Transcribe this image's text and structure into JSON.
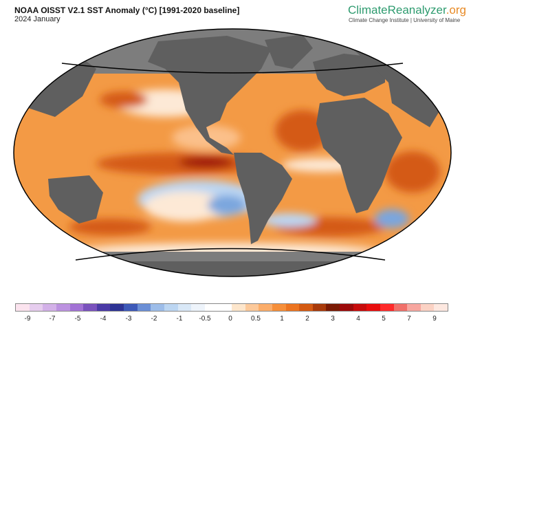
{
  "header": {
    "title": "NOAA OISST V2.1 SST Anomaly (°C) [1991-2020 baseline]",
    "subtitle": "2024 January"
  },
  "brand": {
    "name_main": "ClimateReanalyzer",
    "name_suffix": ".org",
    "affiliation": "Climate Change Institute | University of Maine"
  },
  "colorbar": {
    "tick_labels": [
      "-9",
      "-7",
      "-5",
      "-4",
      "-3",
      "-2",
      "-1",
      "-0.5",
      "0",
      "0.5",
      "1",
      "2",
      "3",
      "4",
      "5",
      "7",
      "9"
    ],
    "colors": [
      "#fbe3ee",
      "#e6cdee",
      "#d3b1e8",
      "#bc92e0",
      "#a272d5",
      "#7a52bd",
      "#4a3aa6",
      "#2d3394",
      "#3d59b8",
      "#6b8fd6",
      "#9dbde9",
      "#bcd6f2",
      "#d9e8f7",
      "#eef4fb",
      "#ffffff",
      "#ffffff",
      "#fde6cc",
      "#fcc99a",
      "#fbad6a",
      "#f68f3a",
      "#ec7420",
      "#d45a12",
      "#a83a0a",
      "#7a1a04",
      "#9c0a0a",
      "#c70c0c",
      "#e80d0d",
      "#ff2a2a",
      "#f0706a",
      "#f7a69f",
      "#fbd2c4",
      "#fde8e0"
    ]
  },
  "map": {
    "colors": {
      "land": "#5f5f5f",
      "ice_cap": "#7d7d7d",
      "ocean_base": "#f39a45",
      "warm_strong": "#d45a12",
      "warm": "#f68f3a",
      "warm_light": "#fbc08a",
      "neutral": "#fde9d6",
      "cool": "#bcd6f2",
      "cool_strong": "#7aa6de",
      "hot": "#9c0a0a",
      "outline": "#000000"
    }
  }
}
